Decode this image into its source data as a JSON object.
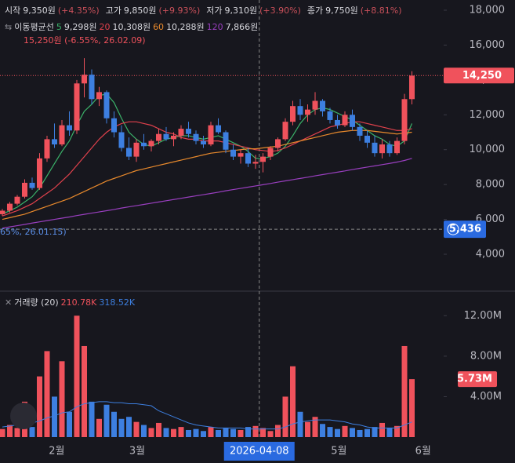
{
  "chart_data": {
    "type": "candlestick",
    "header": [
      {
        "label": "시작",
        "value": "9,350원",
        "change": "(+4.35%)"
      },
      {
        "label": "고가",
        "value": "9,850원",
        "change": "(+9.93%)"
      },
      {
        "label": "저가",
        "value": "9,310원",
        "change": "(+3.90%)"
      },
      {
        "label": "종가",
        "value": "9,750원",
        "change": "(+8.81%)"
      }
    ],
    "ma_title": "이동평균선",
    "ma": [
      {
        "name": "5",
        "color": "#3bb36a",
        "value_label": "9,298원",
        "values": [
          6300,
          6500,
          6700,
          7000,
          7300,
          7800,
          8500,
          9200,
          9900,
          10500,
          11400,
          12200,
          12600,
          13100,
          13200,
          12700,
          11800,
          11000,
          10600,
          10300,
          10200,
          10400,
          10600,
          10700,
          10800,
          10800,
          10700,
          10600,
          10700,
          10800,
          10600,
          10400,
          10200,
          9900,
          9500,
          9500,
          9600,
          9800,
          10200,
          10800,
          11500,
          12000,
          12300,
          12400,
          12300,
          12100,
          11900,
          11700,
          11400,
          11100,
          10800,
          10600,
          10300,
          10200,
          10500,
          11500
        ]
      },
      {
        "name": "20",
        "color": "#e0414c",
        "value_label": "10,308원",
        "values": [
          6200,
          6350,
          6500,
          6700,
          6900,
          7200,
          7500,
          7800,
          8200,
          8600,
          9100,
          9600,
          10100,
          10600,
          11000,
          11300,
          11500,
          11600,
          11600,
          11500,
          11400,
          11200,
          11000,
          10900,
          10700,
          10600,
          10600,
          10500,
          10500,
          10500,
          10400,
          10300,
          10200,
          10100,
          10000,
          9950,
          9900,
          9950,
          10100,
          10300,
          10500,
          10700,
          10900,
          11100,
          11300,
          11400,
          11500,
          11600,
          11600,
          11500,
          11400,
          11300,
          11200,
          11100,
          11100,
          11200
        ]
      },
      {
        "name": "60",
        "color": "#e8892c",
        "value_label": "10,288원",
        "values": [
          6000,
          6100,
          6200,
          6300,
          6450,
          6600,
          6750,
          6900,
          7050,
          7200,
          7400,
          7600,
          7800,
          8000,
          8200,
          8350,
          8500,
          8650,
          8800,
          8900,
          9000,
          9100,
          9200,
          9300,
          9400,
          9500,
          9600,
          9700,
          9800,
          9850,
          9900,
          9950,
          10000,
          10050,
          10050,
          10100,
          10150,
          10200,
          10300,
          10400,
          10500,
          10600,
          10700,
          10800,
          10900,
          11000,
          11050,
          11100,
          11100,
          11100,
          11050,
          11000,
          10950,
          10900,
          10950,
          11000
        ]
      },
      {
        "name": "120",
        "color": "#9a3fc0",
        "value_label": "7,866원",
        "values": [
          5500,
          5570,
          5640,
          5710,
          5790,
          5860,
          5930,
          6000,
          6070,
          6140,
          6220,
          6290,
          6360,
          6430,
          6500,
          6570,
          6650,
          6720,
          6790,
          6860,
          6930,
          7000,
          7070,
          7140,
          7210,
          7280,
          7350,
          7420,
          7490,
          7560,
          7640,
          7710,
          7780,
          7850,
          7920,
          7990,
          8060,
          8140,
          8210,
          8280,
          8350,
          8420,
          8500,
          8570,
          8640,
          8710,
          8780,
          8860,
          8930,
          9000,
          9070,
          9140,
          9210,
          9290,
          9380,
          9500
        ]
      }
    ],
    "open": [
      6300,
      6500,
      6900,
      7300,
      8100,
      7800,
      9500,
      10600,
      10300,
      11400,
      11100,
      13800,
      14300,
      12900,
      13300,
      11800,
      11000,
      10100,
      9600,
      10400,
      10200,
      10500,
      10900,
      10600,
      10800,
      11200,
      10900,
      10500,
      10300,
      11400,
      11000,
      10000,
      9600,
      9800,
      9200,
      9300,
      9600,
      10100,
      10600,
      11600,
      12500,
      12000,
      12300,
      12800,
      12200,
      11700,
      11400,
      12000,
      11300,
      10800,
      10400,
      9800,
      10300,
      9800,
      10500,
      12900
    ],
    "high": [
      6600,
      7000,
      7400,
      8300,
      8400,
      9800,
      10800,
      11500,
      11700,
      12200,
      14000,
      15250,
      14600,
      13600,
      13400,
      12200,
      11400,
      10700,
      10600,
      10900,
      10600,
      11200,
      11300,
      11000,
      11400,
      11600,
      11100,
      10800,
      11600,
      11800,
      11100,
      10300,
      10000,
      10100,
      9700,
      9800,
      10200,
      10700,
      11800,
      12800,
      12900,
      12600,
      13300,
      12900,
      12400,
      12000,
      12200,
      12300,
      11500,
      11100,
      10800,
      10600,
      10500,
      10700,
      13200,
      14500
    ],
    "low": [
      6200,
      6400,
      6800,
      7200,
      7700,
      7700,
      9300,
      10100,
      10200,
      10800,
      10900,
      13000,
      12600,
      12500,
      11500,
      10700,
      9900,
      9400,
      9300,
      10000,
      9900,
      10300,
      10500,
      10200,
      10600,
      10700,
      10300,
      10100,
      10200,
      10900,
      9800,
      9400,
      9200,
      9000,
      8900,
      8700,
      9400,
      9900,
      10500,
      11400,
      11700,
      11600,
      12000,
      11900,
      11500,
      11200,
      11300,
      11100,
      10500,
      10100,
      9600,
      9500,
      9600,
      9700,
      10300,
      12600
    ],
    "close": [
      6500,
      6900,
      7300,
      8100,
      7800,
      9500,
      10600,
      10300,
      11400,
      11100,
      13800,
      14300,
      12900,
      13300,
      11800,
      11000,
      10100,
      9600,
      10400,
      10200,
      10500,
      10900,
      10600,
      10800,
      11200,
      10900,
      10500,
      10300,
      11400,
      11000,
      10000,
      9600,
      9800,
      9200,
      9300,
      9600,
      10100,
      10600,
      11600,
      12500,
      12000,
      12300,
      12800,
      12200,
      11700,
      11400,
      12000,
      11300,
      10800,
      10400,
      9800,
      10300,
      9800,
      10500,
      12900,
      14250
    ],
    "up_color": "#f0525c",
    "down_color": "#3d7fe0",
    "ylim": [
      1930,
      18585
    ],
    "yticks": [
      {
        "value": 18000,
        "label": "18,000"
      },
      {
        "value": 16000,
        "label": "16,000"
      },
      {
        "value": 14000,
        "label": "14,000"
      },
      {
        "value": 12000,
        "label": "12,000"
      },
      {
        "value": 10000,
        "label": "10,000"
      },
      {
        "value": 8000,
        "label": "8,000"
      },
      {
        "value": 6000,
        "label": "6,000"
      },
      {
        "value": 4000,
        "label": "4,000"
      }
    ],
    "max_note": "15,250원 (-6.55%, 26.02.09)",
    "min_note": "65%, 26.01.15)",
    "last_price": {
      "value": 14250,
      "label": "14,250"
    },
    "crosshair_price": {
      "value": 5436,
      "label": "5,436"
    },
    "volume": {
      "title": "거래량 (20)",
      "stat_1": "210.78K",
      "stat_2": "318.52K",
      "values": [
        0.8,
        1.2,
        0.9,
        3.5,
        1.0,
        6.0,
        8.5,
        4.0,
        7.5,
        2.5,
        12.0,
        9.0,
        3.5,
        1.8,
        3.2,
        2.5,
        1.8,
        2.0,
        1.5,
        1.2,
        0.9,
        1.4,
        0.9,
        0.8,
        1.0,
        0.7,
        0.8,
        0.6,
        1.0,
        0.7,
        0.9,
        0.8,
        0.7,
        1.0,
        1.1,
        0.9,
        0.6,
        1.2,
        4.0,
        7.0,
        2.5,
        1.5,
        2.0,
        1.3,
        1.0,
        0.8,
        1.1,
        0.9,
        0.7,
        0.8,
        1.0,
        1.4,
        0.9,
        1.1,
        9.0,
        5.73
      ],
      "avg_color": "#3d7fe0",
      "avg": [
        1.0,
        1.1,
        1.2,
        1.3,
        1.4,
        1.6,
        1.9,
        2.1,
        2.4,
        2.5,
        3.0,
        3.3,
        3.4,
        3.5,
        3.5,
        3.4,
        3.4,
        3.3,
        3.3,
        3.2,
        3.1,
        2.6,
        2.3,
        2.0,
        1.7,
        1.4,
        1.2,
        1.1,
        1.0,
        0.9,
        0.9,
        0.9,
        0.9,
        0.8,
        0.8,
        0.8,
        0.8,
        0.8,
        1.0,
        1.3,
        1.5,
        1.6,
        1.7,
        1.7,
        1.7,
        1.6,
        1.5,
        1.3,
        1.2,
        1.0,
        0.9,
        0.9,
        0.9,
        0.9,
        1.2,
        1.5
      ],
      "ylim": [
        0,
        14.35
      ],
      "yticks": [
        {
          "value": 12,
          "label": "12.00M"
        },
        {
          "value": 8,
          "label": "8.00M"
        },
        {
          "value": 4,
          "label": "4.00M"
        }
      ],
      "last": {
        "value": 5.73,
        "label": "5.73M"
      }
    },
    "xticks": [
      {
        "value": 7.3,
        "label": "2월"
      },
      {
        "value": 18.1,
        "label": "3월"
      },
      {
        "value": 45.2,
        "label": "5월"
      },
      {
        "value": 56.5,
        "label": "6월"
      }
    ],
    "crosshair_x": {
      "value": 34.5,
      "label": "2026-04-08"
    }
  }
}
